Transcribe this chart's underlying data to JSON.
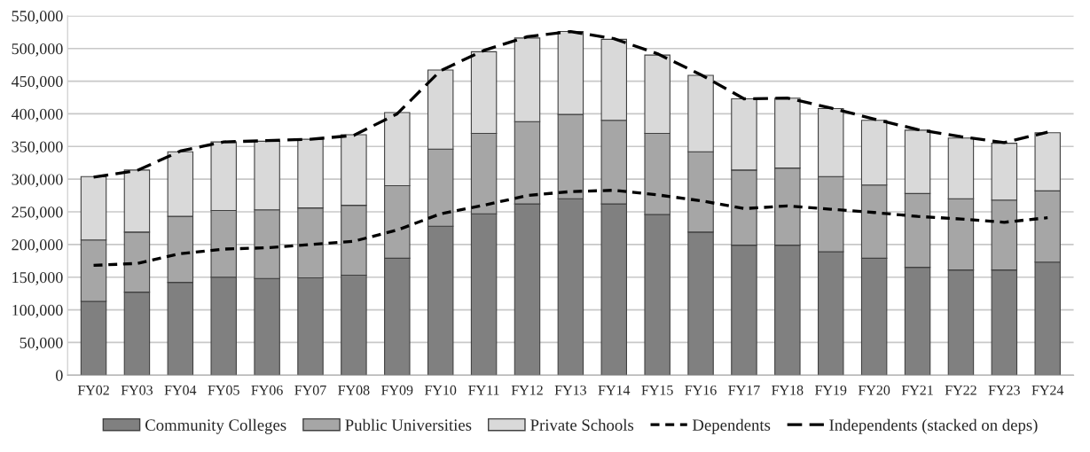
{
  "chart_data": {
    "type": "bar",
    "stacked": true,
    "categories": [
      "FY02",
      "FY03",
      "FY04",
      "FY05",
      "FY06",
      "FY07",
      "FY08",
      "FY09",
      "FY10",
      "FY11",
      "FY12",
      "FY13",
      "FY14",
      "FY15",
      "FY16",
      "FY17",
      "FY18",
      "FY19",
      "FY20",
      "FY21",
      "FY22",
      "FY23",
      "FY24"
    ],
    "series": [
      {
        "name": "Community Colleges",
        "color": "#808080",
        "values": [
          113000,
          127000,
          142000,
          150000,
          148000,
          149000,
          153000,
          179000,
          228000,
          247000,
          262000,
          270000,
          262000,
          246000,
          219000,
          199000,
          199000,
          189000,
          179000,
          165000,
          161000,
          161000,
          173000
        ]
      },
      {
        "name": "Public Universities",
        "color": "#a6a6a6",
        "values": [
          94000,
          92000,
          101000,
          102000,
          105000,
          107000,
          107000,
          111000,
          118000,
          123000,
          126000,
          129000,
          128000,
          124000,
          123000,
          115000,
          118000,
          115000,
          112000,
          113000,
          109000,
          107000,
          109000
        ]
      },
      {
        "name": "Private Schools",
        "color": "#d9d9d9",
        "values": [
          97000,
          95000,
          99000,
          105000,
          105000,
          105000,
          108000,
          112000,
          121000,
          125000,
          128000,
          127000,
          124000,
          120000,
          117000,
          109000,
          107000,
          104000,
          99000,
          97000,
          93000,
          87000,
          89000
        ]
      },
      {
        "name": "Dependents",
        "type": "line",
        "color": "#000000",
        "line_style": "dashed",
        "values": [
          168000,
          171000,
          186000,
          193000,
          195000,
          200000,
          205000,
          222000,
          247000,
          260000,
          275000,
          281000,
          283000,
          276000,
          267000,
          255000,
          259000,
          254000,
          249000,
          243000,
          239000,
          234000,
          241000
        ]
      },
      {
        "name": "Independents (stacked on deps)",
        "type": "line",
        "color": "#000000",
        "line_style": "dashed",
        "values": [
          303000,
          313000,
          343000,
          357000,
          359000,
          361000,
          367000,
          400000,
          466000,
          497000,
          518000,
          526000,
          515000,
          492000,
          460000,
          423000,
          424000,
          409000,
          392000,
          376000,
          365000,
          356000,
          372000
        ]
      }
    ],
    "ylim": [
      0,
      550000
    ],
    "yticks": [
      {
        "value": 0,
        "label": "0"
      },
      {
        "value": 50000,
        "label": "50,000"
      },
      {
        "value": 100000,
        "label": "100,000"
      },
      {
        "value": 150000,
        "label": "150,000"
      },
      {
        "value": 200000,
        "label": "200,000"
      },
      {
        "value": 250000,
        "label": "250,000"
      },
      {
        "value": 300000,
        "label": "300,000"
      },
      {
        "value": 350000,
        "label": "350,000"
      },
      {
        "value": 400000,
        "label": "400,000"
      },
      {
        "value": 450000,
        "label": "450,000"
      },
      {
        "value": 500000,
        "label": "500,000"
      },
      {
        "value": 550000,
        "label": "550,000"
      }
    ],
    "grid": "y",
    "legend": "bottom"
  }
}
